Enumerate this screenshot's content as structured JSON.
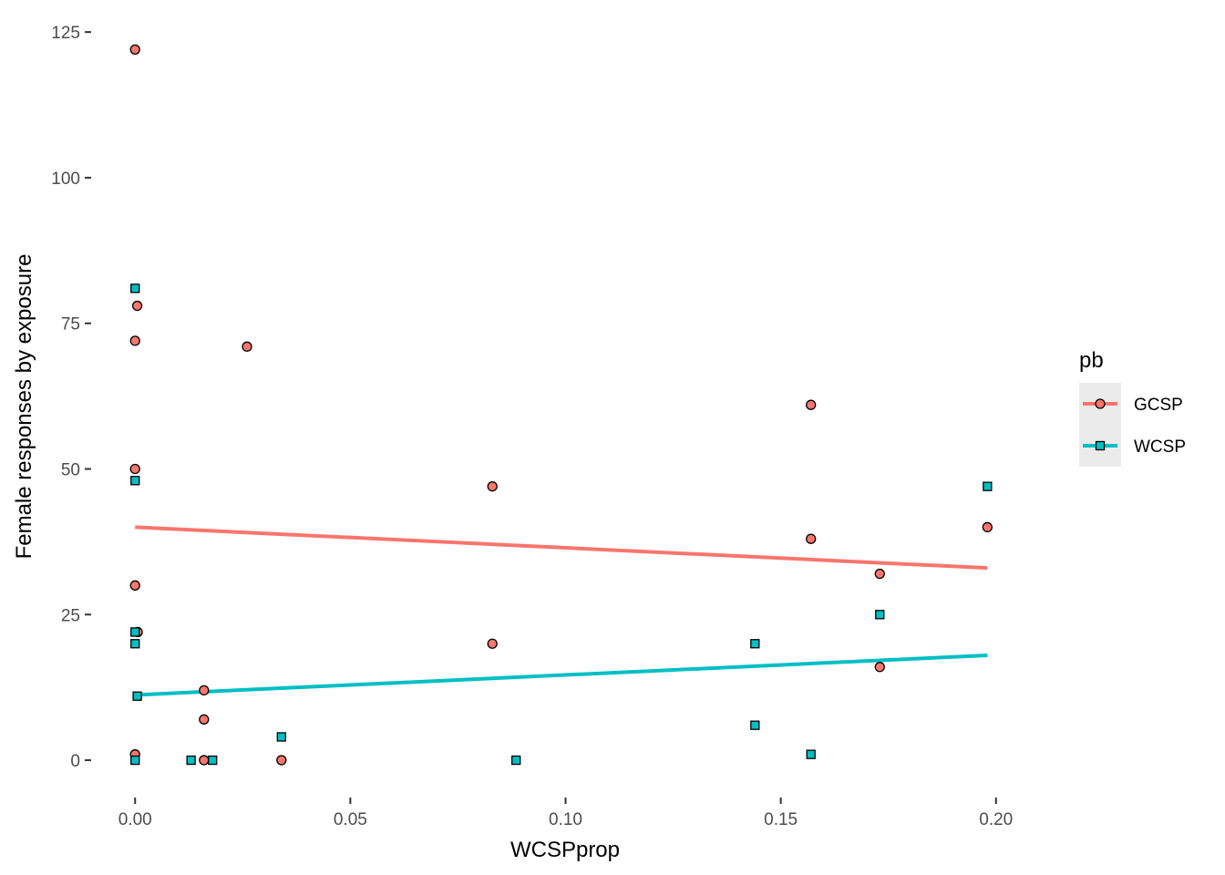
{
  "chart_data": {
    "type": "scatter",
    "title": "",
    "xlabel": "WCSPprop",
    "ylabel": "Female responses by exposure",
    "xlim": [
      -0.01,
      0.21
    ],
    "ylim": [
      -6.25,
      128
    ],
    "x_ticks": [
      0.0,
      0.05,
      0.1,
      0.15,
      0.2
    ],
    "x_tick_labels": [
      "0.00",
      "0.05",
      "0.10",
      "0.15",
      "0.20"
    ],
    "y_ticks": [
      0,
      25,
      50,
      75,
      100,
      125
    ],
    "y_tick_labels": [
      "0",
      "25",
      "50",
      "75",
      "100",
      "125"
    ],
    "grid": false,
    "legend": {
      "title": "pb",
      "position": "right"
    },
    "series": [
      {
        "name": "GCSP",
        "color": "#F8766D",
        "marker": "circle",
        "points": [
          [
            0.0,
            122
          ],
          [
            0.0005,
            78
          ],
          [
            0.0,
            72
          ],
          [
            0.0,
            50
          ],
          [
            0.0,
            30
          ],
          [
            0.0006,
            22
          ],
          [
            0.0,
            1
          ],
          [
            0.016,
            12
          ],
          [
            0.016,
            7
          ],
          [
            0.016,
            0
          ],
          [
            0.026,
            71
          ],
          [
            0.034,
            0
          ],
          [
            0.083,
            47
          ],
          [
            0.083,
            20
          ],
          [
            0.157,
            61
          ],
          [
            0.157,
            38
          ],
          [
            0.173,
            32
          ],
          [
            0.173,
            16
          ],
          [
            0.198,
            40
          ]
        ],
        "fit": [
          [
            0.0,
            40.0
          ],
          [
            0.198,
            33.0
          ]
        ]
      },
      {
        "name": "WCSP",
        "color": "#00BFC4",
        "marker": "square",
        "points": [
          [
            0.0,
            81
          ],
          [
            0.0,
            48
          ],
          [
            0.0,
            22
          ],
          [
            0.0,
            20
          ],
          [
            0.0005,
            11
          ],
          [
            0.0,
            0
          ],
          [
            0.013,
            0
          ],
          [
            0.018,
            0
          ],
          [
            0.034,
            4
          ],
          [
            0.0885,
            0
          ],
          [
            0.144,
            20
          ],
          [
            0.144,
            6
          ],
          [
            0.157,
            1
          ],
          [
            0.173,
            25
          ],
          [
            0.198,
            47
          ]
        ],
        "fit": [
          [
            0.0,
            11.2
          ],
          [
            0.198,
            18.0
          ]
        ]
      }
    ]
  }
}
